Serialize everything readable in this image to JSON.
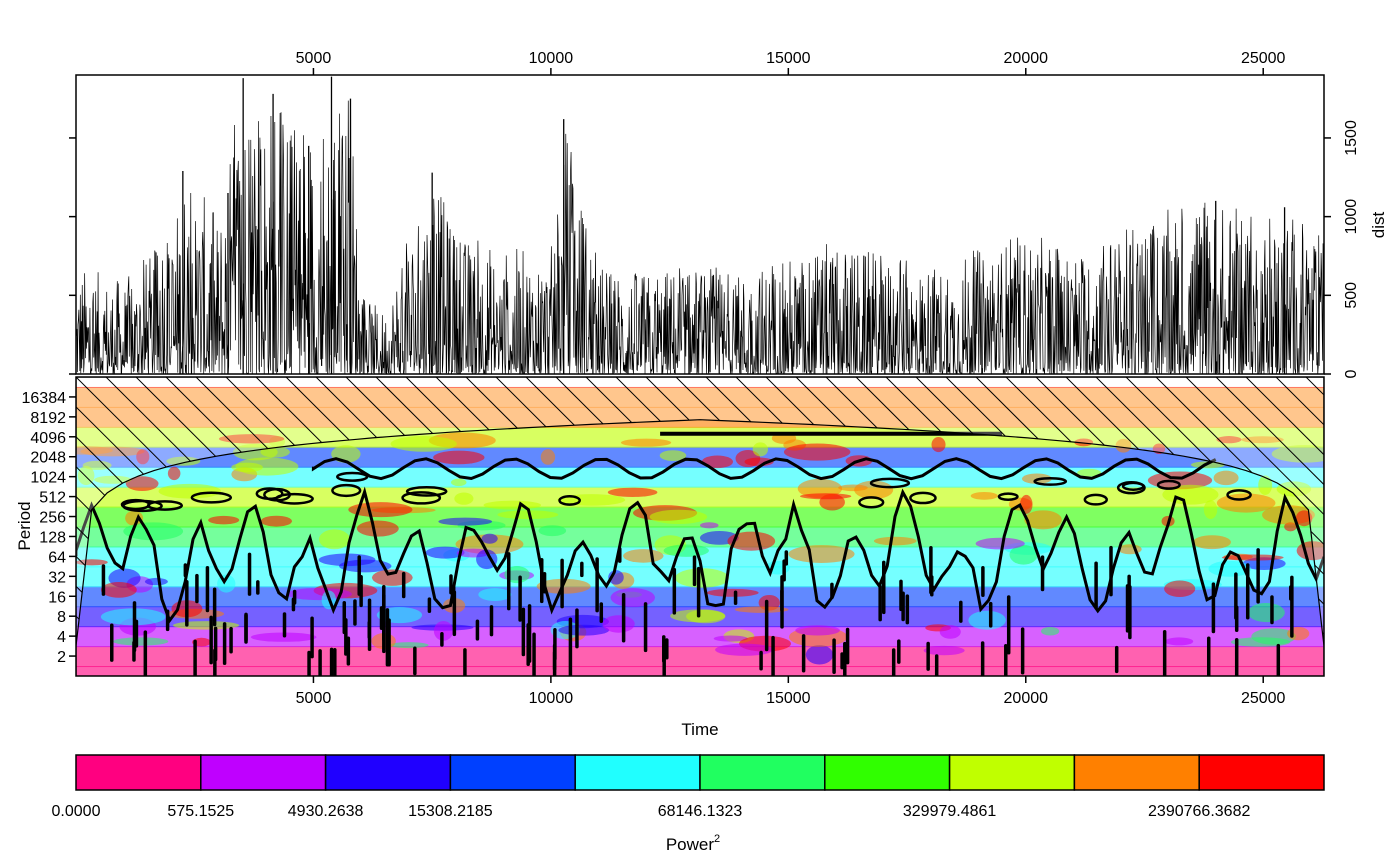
{
  "chart_data": [
    {
      "type": "line",
      "panel": "time-series",
      "ylabel": "dist",
      "xlim": [
        0,
        26280
      ],
      "ylim": [
        0,
        1900
      ],
      "x_ticks": [
        5000,
        10000,
        15000,
        20000,
        25000
      ],
      "y_ticks": [
        0,
        500,
        1000,
        1500
      ],
      "x_ticklabels": [
        "5000",
        "10000",
        "15000",
        "20000",
        "25000"
      ],
      "y_ticklabels": [
        "0",
        "500",
        "1000",
        "1500"
      ],
      "line_color": "#000000",
      "envelope": [
        [
          0,
          700
        ],
        [
          1000,
          600
        ],
        [
          2000,
          900
        ],
        [
          2300,
          1300
        ],
        [
          3000,
          1000
        ],
        [
          3500,
          1900
        ],
        [
          4200,
          1800
        ],
        [
          5000,
          1500
        ],
        [
          5400,
          1900
        ],
        [
          5800,
          1800
        ],
        [
          6000,
          500
        ],
        [
          6500,
          400
        ],
        [
          7000,
          900
        ],
        [
          7500,
          1300
        ],
        [
          8000,
          900
        ],
        [
          9000,
          800
        ],
        [
          10000,
          800
        ],
        [
          10300,
          1600
        ],
        [
          11000,
          700
        ],
        [
          12000,
          650
        ],
        [
          13000,
          700
        ],
        [
          14000,
          650
        ],
        [
          15000,
          750
        ],
        [
          16000,
          850
        ],
        [
          17000,
          750
        ],
        [
          18000,
          700
        ],
        [
          19000,
          800
        ],
        [
          20000,
          900
        ],
        [
          21000,
          800
        ],
        [
          22000,
          900
        ],
        [
          23000,
          1050
        ],
        [
          24000,
          1100
        ],
        [
          25000,
          1000
        ],
        [
          25500,
          1050
        ],
        [
          26280,
          900
        ]
      ],
      "spikes": [
        {
          "x": 3520,
          "y": 1880
        },
        {
          "x": 4150,
          "y": 1780
        },
        {
          "x": 5380,
          "y": 1890
        },
        {
          "x": 5780,
          "y": 1750
        },
        {
          "x": 10270,
          "y": 1620
        },
        {
          "x": 2250,
          "y": 1290
        },
        {
          "x": 7500,
          "y": 1280
        },
        {
          "x": 4900,
          "y": 1450
        },
        {
          "x": 3200,
          "y": 1150
        },
        {
          "x": 24000,
          "y": 1100
        },
        {
          "x": 25450,
          "y": 1060
        }
      ]
    },
    {
      "type": "heatmap",
      "panel": "wavelet-power",
      "xlabel": "Time",
      "ylabel": "Period",
      "xlim": [
        0,
        26280
      ],
      "period_log2_range": [
        0,
        15
      ],
      "x_ticks": [
        5000,
        10000,
        15000,
        20000,
        25000
      ],
      "x_ticklabels": [
        "5000",
        "10000",
        "15000",
        "20000",
        "25000"
      ],
      "y_ticks": [
        2,
        4,
        8,
        16,
        32,
        64,
        128,
        256,
        512,
        1024,
        2048,
        4096,
        8192,
        16384
      ],
      "y_ticklabels": [
        "2",
        "4",
        "8",
        "16",
        "32",
        "64",
        "128",
        "256",
        "512",
        "1024",
        "2048",
        "4096",
        "8192",
        "16384"
      ],
      "cone_of_influence": "hatched",
      "significance_contours": "black"
    },
    {
      "type": "legend",
      "panel": "color-key",
      "label": "Power",
      "label_superscript": "2",
      "colors": [
        "#ff0080",
        "#bf00ff",
        "#2000ff",
        "#0040ff",
        "#20ffff",
        "#20ff60",
        "#30ff00",
        "#c0ff00",
        "#ff8000",
        "#ff0000"
      ],
      "tick_labels": [
        "0.0000",
        "575.1525",
        "4930.2638",
        "15308.2185",
        "68146.1323",
        "329979.4861",
        "2390766.3682"
      ],
      "tick_positions": [
        0,
        1,
        2,
        3,
        5,
        7,
        9
      ]
    }
  ]
}
